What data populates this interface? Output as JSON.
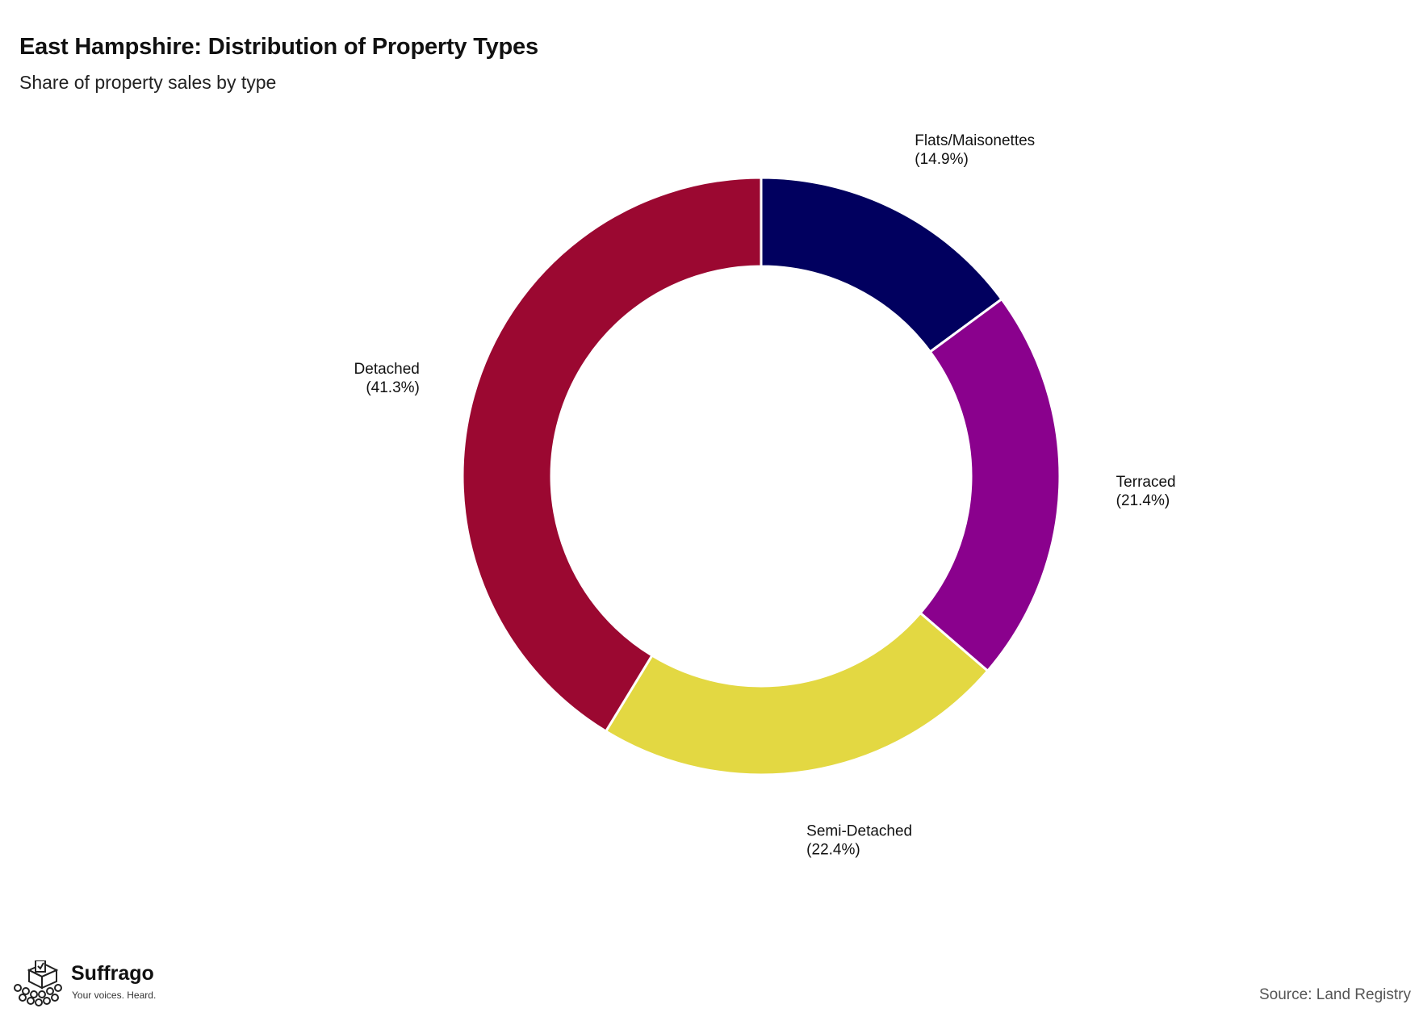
{
  "title": "East Hampshire: Distribution of Property Types",
  "subtitle": "Share of property sales by type",
  "source": "Source: Land Registry",
  "branding": {
    "name": "Suffrago",
    "tagline": "Your voices. Heard.",
    "icon": "ballot-box-crowd-icon"
  },
  "chart_data": {
    "type": "pie",
    "style": "donut",
    "unit": "%",
    "slices": [
      {
        "label": "Flats/Maisonettes",
        "value": 14.9,
        "display": "(14.9%)",
        "color": "#01005f"
      },
      {
        "label": "Terraced",
        "value": 21.4,
        "display": "(21.4%)",
        "color": "#8a018d"
      },
      {
        "label": "Semi-Detached",
        "value": 22.4,
        "display": "(22.4%)",
        "color": "#e3d842"
      },
      {
        "label": "Detached",
        "value": 41.3,
        "display": "(41.3%)",
        "color": "#9b0831"
      }
    ],
    "start_angle": "12 o'clock",
    "direction": "clockwise",
    "legend": "none (direct labels)"
  }
}
